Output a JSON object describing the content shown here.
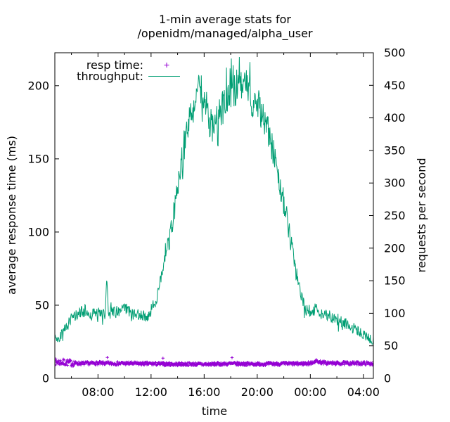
{
  "title": {
    "line1": "1-min average stats for",
    "line2": "/openidm/managed/alpha_user"
  },
  "colors": {
    "resp_time": "#9400d3",
    "throughput": "#009e73",
    "axis": "#000000",
    "background": "#ffffff"
  },
  "chart_data": {
    "type": "line",
    "title": "1-min average stats for /openidm/managed/alpha_user",
    "xlabel": "time",
    "legend_position": "top-left-inside",
    "y_left": {
      "label": "average response time (ms)",
      "range": [
        0,
        222.5
      ],
      "ticks": [
        0,
        50,
        100,
        150,
        200
      ]
    },
    "y_right": {
      "label": "requests per second",
      "range": [
        0,
        500
      ],
      "ticks": [
        0,
        50,
        100,
        150,
        200,
        250,
        300,
        350,
        400,
        450,
        500
      ]
    },
    "x_axis": {
      "unit": "time of day (HH:MM)",
      "range_hours": [
        4.75,
        28.75
      ],
      "major_ticks": [
        {
          "hour": 8,
          "label": "08:00"
        },
        {
          "hour": 12,
          "label": "12:00"
        },
        {
          "hour": 16,
          "label": "16:00"
        },
        {
          "hour": 20,
          "label": "20:00"
        },
        {
          "hour": 24,
          "label": "00:00"
        },
        {
          "hour": 28,
          "label": "04:00"
        }
      ],
      "minor_tick_hours": [
        6,
        10,
        14,
        18,
        22,
        26
      ]
    },
    "legend": {
      "entries": [
        {
          "label": "resp time:",
          "marker": "plus",
          "color": "#9400d3"
        },
        {
          "label": "throughput:",
          "marker": "line",
          "color": "#009e73"
        }
      ]
    },
    "sample_step_minutes": 2,
    "series": [
      {
        "name": "resp time:",
        "axis": "left",
        "style": "points",
        "marker": "plus",
        "color": "#9400d3",
        "unit": "ms",
        "anchors_hour_value": [
          [
            4.75,
            11.2
          ],
          [
            5.3,
            11.0
          ],
          [
            5.8,
            10.7
          ],
          [
            6.3,
            10.3
          ],
          [
            7.0,
            10.2
          ],
          [
            8.0,
            10.4
          ],
          [
            9.0,
            10.2
          ],
          [
            10.0,
            10.3
          ],
          [
            11.0,
            10.1
          ],
          [
            12.0,
            10.0
          ],
          [
            13.0,
            9.8
          ],
          [
            14.0,
            9.7
          ],
          [
            15.0,
            9.8
          ],
          [
            16.0,
            9.6
          ],
          [
            17.0,
            9.8
          ],
          [
            18.0,
            10.0
          ],
          [
            19.0,
            9.9
          ],
          [
            20.0,
            9.8
          ],
          [
            21.0,
            9.9
          ],
          [
            22.0,
            10.0
          ],
          [
            23.0,
            10.0
          ],
          [
            24.0,
            10.3
          ],
          [
            24.4,
            11.9
          ],
          [
            24.8,
            11.0
          ],
          [
            25.2,
            10.5
          ],
          [
            26.0,
            10.3
          ],
          [
            27.0,
            10.4
          ],
          [
            28.0,
            10.3
          ],
          [
            28.75,
            10.2
          ]
        ],
        "noise_value": 1.1,
        "early_noise_value": 2.2,
        "early_noise_until_hour": 6.3,
        "outliers_hour_value": [
          [
            8.7,
            14.3
          ],
          [
            12.9,
            13.8
          ],
          [
            18.1,
            14.2
          ]
        ]
      },
      {
        "name": "throughput:",
        "axis": "right",
        "style": "line",
        "color": "#009e73",
        "unit": "requests per second",
        "anchors_hour_value": [
          [
            4.75,
            65
          ],
          [
            4.9,
            57
          ],
          [
            5.1,
            64
          ],
          [
            5.4,
            74
          ],
          [
            5.8,
            86
          ],
          [
            6.2,
            95
          ],
          [
            6.6,
            100
          ],
          [
            7.0,
            104
          ],
          [
            7.4,
            97
          ],
          [
            7.8,
            101
          ],
          [
            8.2,
            98
          ],
          [
            8.55,
            100
          ],
          [
            8.67,
            155
          ],
          [
            8.8,
            100
          ],
          [
            9.2,
            104
          ],
          [
            9.6,
            100
          ],
          [
            10.0,
            107
          ],
          [
            10.4,
            103
          ],
          [
            10.8,
            97
          ],
          [
            11.2,
            99
          ],
          [
            11.6,
            94
          ],
          [
            11.9,
            100
          ],
          [
            12.2,
            112
          ],
          [
            12.5,
            130
          ],
          [
            12.8,
            155
          ],
          [
            13.1,
            185
          ],
          [
            13.4,
            215
          ],
          [
            13.7,
            250
          ],
          [
            14.0,
            295
          ],
          [
            14.3,
            335
          ],
          [
            14.6,
            370
          ],
          [
            14.9,
            395
          ],
          [
            15.2,
            420
          ],
          [
            15.5,
            445
          ],
          [
            15.8,
            440
          ],
          [
            16.1,
            430
          ],
          [
            16.4,
            395
          ],
          [
            16.7,
            380
          ],
          [
            17.0,
            395
          ],
          [
            17.3,
            410
          ],
          [
            17.6,
            420
          ],
          [
            17.9,
            435
          ],
          [
            18.2,
            440
          ],
          [
            18.5,
            450
          ],
          [
            18.8,
            445
          ],
          [
            19.1,
            450
          ],
          [
            19.4,
            435
          ],
          [
            19.7,
            425
          ],
          [
            20.0,
            420
          ],
          [
            20.3,
            410
          ],
          [
            20.6,
            395
          ],
          [
            21.0,
            365
          ],
          [
            21.4,
            330
          ],
          [
            21.8,
            290
          ],
          [
            22.2,
            250
          ],
          [
            22.6,
            200
          ],
          [
            23.0,
            155
          ],
          [
            23.4,
            120
          ],
          [
            23.7,
            105
          ],
          [
            24.0,
            103
          ],
          [
            24.4,
            107
          ],
          [
            24.8,
            100
          ],
          [
            25.2,
            97
          ],
          [
            25.6,
            94
          ],
          [
            26.0,
            90
          ],
          [
            26.4,
            86
          ],
          [
            26.8,
            82
          ],
          [
            27.2,
            77
          ],
          [
            27.6,
            72
          ],
          [
            28.0,
            67
          ],
          [
            28.4,
            62
          ],
          [
            28.75,
            57
          ]
        ],
        "noise_base_value": 4,
        "noise_scale": 0.055
      }
    ]
  }
}
